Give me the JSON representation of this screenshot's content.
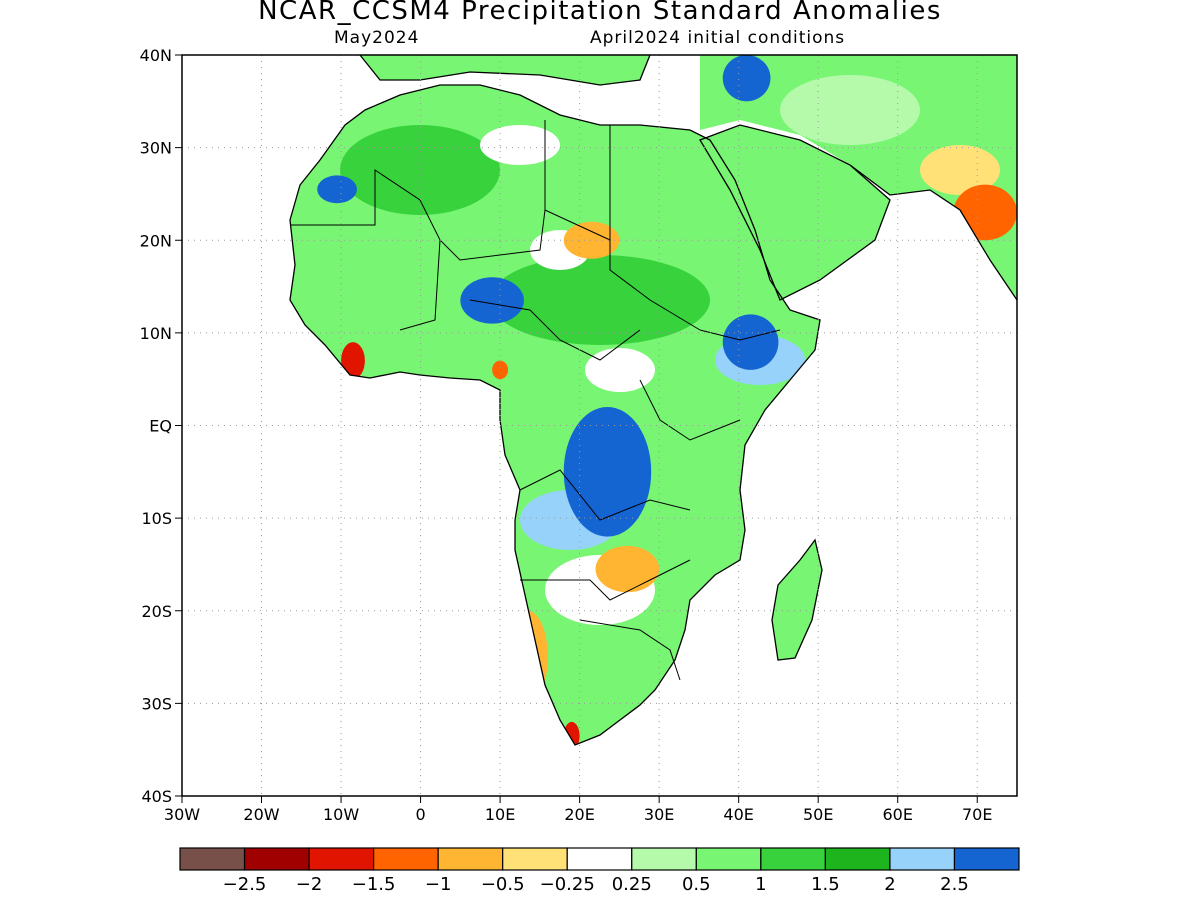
{
  "title": "NCAR_CCSM4 Precipitation Standard Anomalies",
  "subtitle_left": "May2024",
  "subtitle_right": "April2024 initial conditions",
  "map": {
    "lon_range": [
      -30,
      75
    ],
    "lat_range": [
      -40,
      40
    ],
    "lat_ticks": [
      {
        "label": "40N",
        "value": 40
      },
      {
        "label": "30N",
        "value": 30
      },
      {
        "label": "20N",
        "value": 20
      },
      {
        "label": "10N",
        "value": 10
      },
      {
        "label": "EQ",
        "value": 0
      },
      {
        "label": "10S",
        "value": -10
      },
      {
        "label": "20S",
        "value": -20
      },
      {
        "label": "30S",
        "value": -30
      },
      {
        "label": "40S",
        "value": -40
      }
    ],
    "lon_ticks": [
      {
        "label": "30W",
        "value": -30
      },
      {
        "label": "20W",
        "value": -20
      },
      {
        "label": "10W",
        "value": -10
      },
      {
        "label": "0",
        "value": 0
      },
      {
        "label": "10E",
        "value": 10
      },
      {
        "label": "20E",
        "value": 20
      },
      {
        "label": "30E",
        "value": 30
      },
      {
        "label": "40E",
        "value": 40
      },
      {
        "label": "50E",
        "value": 50
      },
      {
        "label": "60E",
        "value": 60
      },
      {
        "label": "70E",
        "value": 70
      }
    ],
    "grid": true,
    "anomaly_regions": [
      {
        "name": "central-africa-wet",
        "value": 2.5,
        "color": "#1464d2",
        "lon": [
          18,
          29
        ],
        "lat": [
          -12,
          2
        ]
      },
      {
        "name": "ethiopia-wet",
        "value": 2.5,
        "color": "#1464d2",
        "lon": [
          38,
          45
        ],
        "lat": [
          6,
          12
        ]
      },
      {
        "name": "nigeria-wet",
        "value": 2.5,
        "color": "#1464d2",
        "lon": [
          5,
          13
        ],
        "lat": [
          11,
          16
        ]
      },
      {
        "name": "west-sahara-wet",
        "value": 2.5,
        "color": "#1464d2",
        "lon": [
          -13,
          -8
        ],
        "lat": [
          24,
          27
        ]
      },
      {
        "name": "turkey-wet",
        "value": 2.5,
        "color": "#1464d2",
        "lon": [
          38,
          44
        ],
        "lat": [
          35,
          40
        ]
      },
      {
        "name": "angola-dry",
        "value": -1,
        "color": "#ffb432",
        "lon": [
          11,
          16
        ],
        "lat": [
          -30,
          -20
        ]
      },
      {
        "name": "zambia-dry",
        "value": -1,
        "color": "#ffb432",
        "lon": [
          22,
          30
        ],
        "lat": [
          -18,
          -13
        ]
      },
      {
        "name": "sahel-dry",
        "value": -1,
        "color": "#ffb432",
        "lon": [
          18,
          25
        ],
        "lat": [
          18,
          22
        ]
      },
      {
        "name": "south-africa-dry",
        "value": -2,
        "color": "#e11400",
        "lon": [
          18,
          20
        ],
        "lat": [
          -35,
          -32
        ]
      },
      {
        "name": "liberia-dry",
        "value": -2,
        "color": "#e11400",
        "lon": [
          -10,
          -7
        ],
        "lat": [
          5,
          9
        ]
      },
      {
        "name": "cameroon-dry",
        "value": -1.5,
        "color": "#ff6400",
        "lon": [
          9,
          11
        ],
        "lat": [
          5,
          7
        ]
      },
      {
        "name": "india-dry",
        "value": -1.5,
        "color": "#ff6400",
        "lon": [
          67,
          75
        ],
        "lat": [
          20,
          26
        ]
      }
    ]
  },
  "colorbar": {
    "colors": [
      "#78504a",
      "#a00000",
      "#e11400",
      "#ff6400",
      "#ffb432",
      "#ffe178",
      "#ffffff",
      "#b4faaa",
      "#78f573",
      "#37d23c",
      "#1eb41e",
      "#96d2fa",
      "#1464d2"
    ],
    "labels": [
      "−2.5",
      "−2",
      "−1.5",
      "−1",
      "−0.5",
      "−0.25",
      "0.25",
      "0.5",
      "1",
      "1.5",
      "2",
      "2.5"
    ]
  }
}
